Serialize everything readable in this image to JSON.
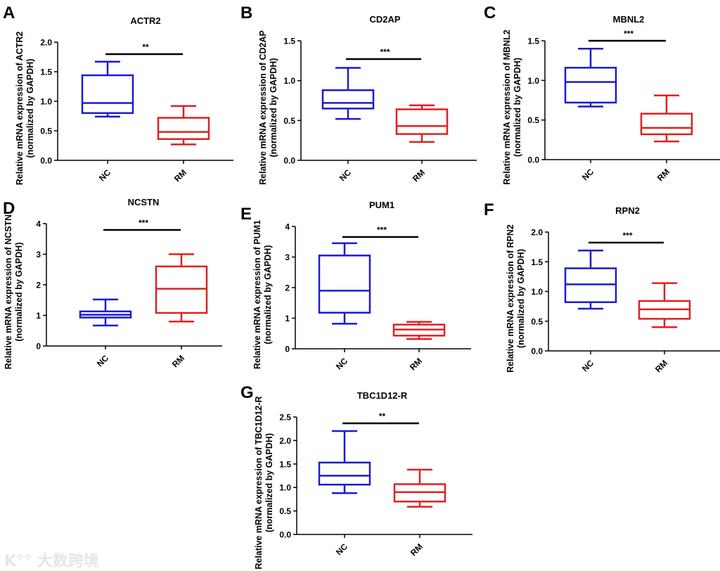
{
  "watermark": "大数跨境",
  "chart_data": [
    {
      "panel": "A",
      "type": "box",
      "title": "ACTR2",
      "ylabel": [
        "Relative mRNA expression of ACTR2",
        "(normalized by GAPDH)"
      ],
      "ylim": [
        0,
        2.0
      ],
      "yticks": [
        "0.0",
        "0.5",
        "1.0",
        "1.5",
        "2.0"
      ],
      "categories": [
        "NC",
        "RM"
      ],
      "significance": "**",
      "series": [
        {
          "name": "NC",
          "color": "#1a1ad6",
          "min": 0.74,
          "q1": 0.8,
          "median": 0.97,
          "q3": 1.44,
          "max": 1.67
        },
        {
          "name": "RM",
          "color": "#e02020",
          "min": 0.27,
          "q1": 0.36,
          "median": 0.48,
          "q3": 0.72,
          "max": 0.92
        }
      ]
    },
    {
      "panel": "B",
      "type": "box",
      "title": "CD2AP",
      "ylabel": [
        "Relative mRNA expression of CD2AP",
        "(normalized by GAPDH)"
      ],
      "ylim": [
        0,
        1.5
      ],
      "yticks": [
        "0.0",
        "0.5",
        "1.0",
        "1.5"
      ],
      "categories": [
        "NC",
        "RM"
      ],
      "significance": "***",
      "series": [
        {
          "name": "NC",
          "color": "#1a1ad6",
          "min": 0.52,
          "q1": 0.65,
          "median": 0.72,
          "q3": 0.88,
          "max": 1.16
        },
        {
          "name": "RM",
          "color": "#e02020",
          "min": 0.23,
          "q1": 0.33,
          "median": 0.43,
          "q3": 0.64,
          "max": 0.69
        }
      ]
    },
    {
      "panel": "C",
      "type": "box",
      "title": "MBNL2",
      "ylabel": [
        "Relative mRNA expression of MBNL2",
        "(normalized by GAPDH)"
      ],
      "ylim": [
        0,
        1.5
      ],
      "yticks": [
        "0.0",
        "0.5",
        "1.0",
        "1.5"
      ],
      "categories": [
        "NC",
        "RM"
      ],
      "significance": "***",
      "series": [
        {
          "name": "NC",
          "color": "#1a1ad6",
          "min": 0.67,
          "q1": 0.72,
          "median": 0.98,
          "q3": 1.16,
          "max": 1.4
        },
        {
          "name": "RM",
          "color": "#e02020",
          "min": 0.23,
          "q1": 0.32,
          "median": 0.4,
          "q3": 0.58,
          "max": 0.81
        }
      ]
    },
    {
      "panel": "D",
      "type": "box",
      "title": "NCSTN",
      "ylabel": [
        "Relative mRNA expression of NCSTN",
        "(normalized by GAPDH)"
      ],
      "ylim": [
        0,
        4
      ],
      "yticks": [
        "0",
        "1",
        "2",
        "3",
        "4"
      ],
      "categories": [
        "NC",
        "RM"
      ],
      "significance": "***",
      "series": [
        {
          "name": "NC",
          "color": "#1a1ad6",
          "min": 0.67,
          "q1": 0.93,
          "median": 1.02,
          "q3": 1.13,
          "max": 1.52
        },
        {
          "name": "RM",
          "color": "#e02020",
          "min": 0.8,
          "q1": 1.08,
          "median": 1.87,
          "q3": 2.6,
          "max": 3.0
        }
      ]
    },
    {
      "panel": "E",
      "type": "box",
      "title": "PUM1",
      "ylabel": [
        "Relative mRNA expression of PUM1",
        "(normalized by GAPDH)"
      ],
      "ylim": [
        0,
        4
      ],
      "yticks": [
        "0",
        "1",
        "2",
        "3",
        "4"
      ],
      "categories": [
        "NC",
        "RM"
      ],
      "significance": "***",
      "series": [
        {
          "name": "NC",
          "color": "#1a1ad6",
          "min": 0.82,
          "q1": 1.18,
          "median": 1.9,
          "q3": 3.05,
          "max": 3.45
        },
        {
          "name": "RM",
          "color": "#e02020",
          "min": 0.32,
          "q1": 0.43,
          "median": 0.63,
          "q3": 0.79,
          "max": 0.88
        }
      ]
    },
    {
      "panel": "F",
      "type": "box",
      "title": "RPN2",
      "ylabel": [
        "Relative mRNA expression of RPN2",
        "(normalized by GAPDH)"
      ],
      "ylim": [
        0,
        2.0
      ],
      "yticks": [
        "0.0",
        "0.5",
        "1.0",
        "1.5",
        "2.0"
      ],
      "categories": [
        "NC",
        "RM"
      ],
      "significance": "***",
      "series": [
        {
          "name": "NC",
          "color": "#1a1ad6",
          "min": 0.71,
          "q1": 0.82,
          "median": 1.12,
          "q3": 1.39,
          "max": 1.69
        },
        {
          "name": "RM",
          "color": "#e02020",
          "min": 0.4,
          "q1": 0.54,
          "median": 0.7,
          "q3": 0.84,
          "max": 1.14
        }
      ]
    },
    {
      "panel": "G",
      "type": "box",
      "title": "TBC1D12-R",
      "ylabel": [
        "Relative mRNA expression of TBC1D12-R",
        "(normalized by GAPDH)"
      ],
      "ylim": [
        0,
        2.5
      ],
      "yticks": [
        "0.0",
        "0.5",
        "1.0",
        "1.5",
        "2.0",
        "2.5"
      ],
      "categories": [
        "NC",
        "RM"
      ],
      "significance": "**",
      "series": [
        {
          "name": "NC",
          "color": "#1a1ad6",
          "min": 0.88,
          "q1": 1.06,
          "median": 1.25,
          "q3": 1.53,
          "max": 2.2
        },
        {
          "name": "RM",
          "color": "#e02020",
          "min": 0.59,
          "q1": 0.7,
          "median": 0.9,
          "q3": 1.07,
          "max": 1.38
        }
      ]
    }
  ]
}
